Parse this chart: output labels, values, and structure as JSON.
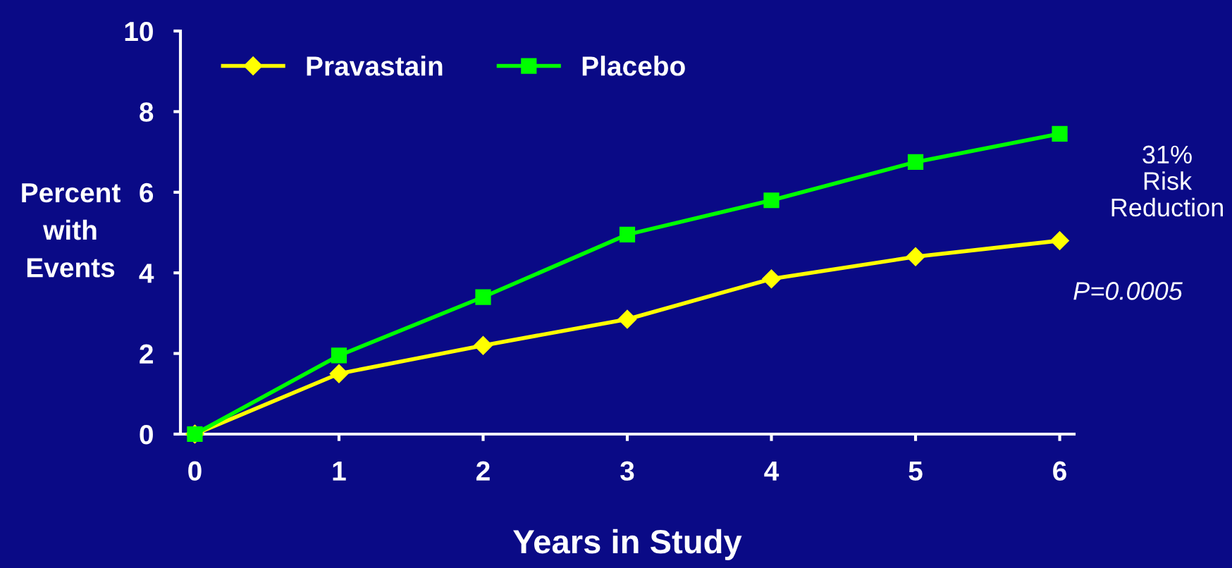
{
  "chart_data": {
    "type": "line",
    "xlabel": "Years in Study",
    "ylabel": "Percent\nwith\nEvents",
    "x": [
      0,
      1,
      2,
      3,
      4,
      5,
      6
    ],
    "series": [
      {
        "name": "Pravastain",
        "color": "#ffff00",
        "marker": "diamond",
        "values": [
          0,
          1.5,
          2.2,
          2.85,
          3.85,
          4.4,
          4.8
        ]
      },
      {
        "name": "Placebo",
        "color": "#00ff00",
        "marker": "square",
        "values": [
          0,
          1.95,
          3.4,
          4.95,
          5.8,
          6.75,
          7.45
        ]
      }
    ],
    "xlim": [
      -0.1,
      6.1
    ],
    "ylim": [
      0,
      10
    ],
    "xticks": [
      0,
      1,
      2,
      3,
      4,
      5,
      6
    ],
    "yticks": [
      0,
      2,
      4,
      6,
      8,
      10
    ],
    "grid": false,
    "legend": "top left",
    "line_style": "solid",
    "annotations": [
      "31%\nRisk\nReduction",
      "P=0.0005"
    ]
  }
}
